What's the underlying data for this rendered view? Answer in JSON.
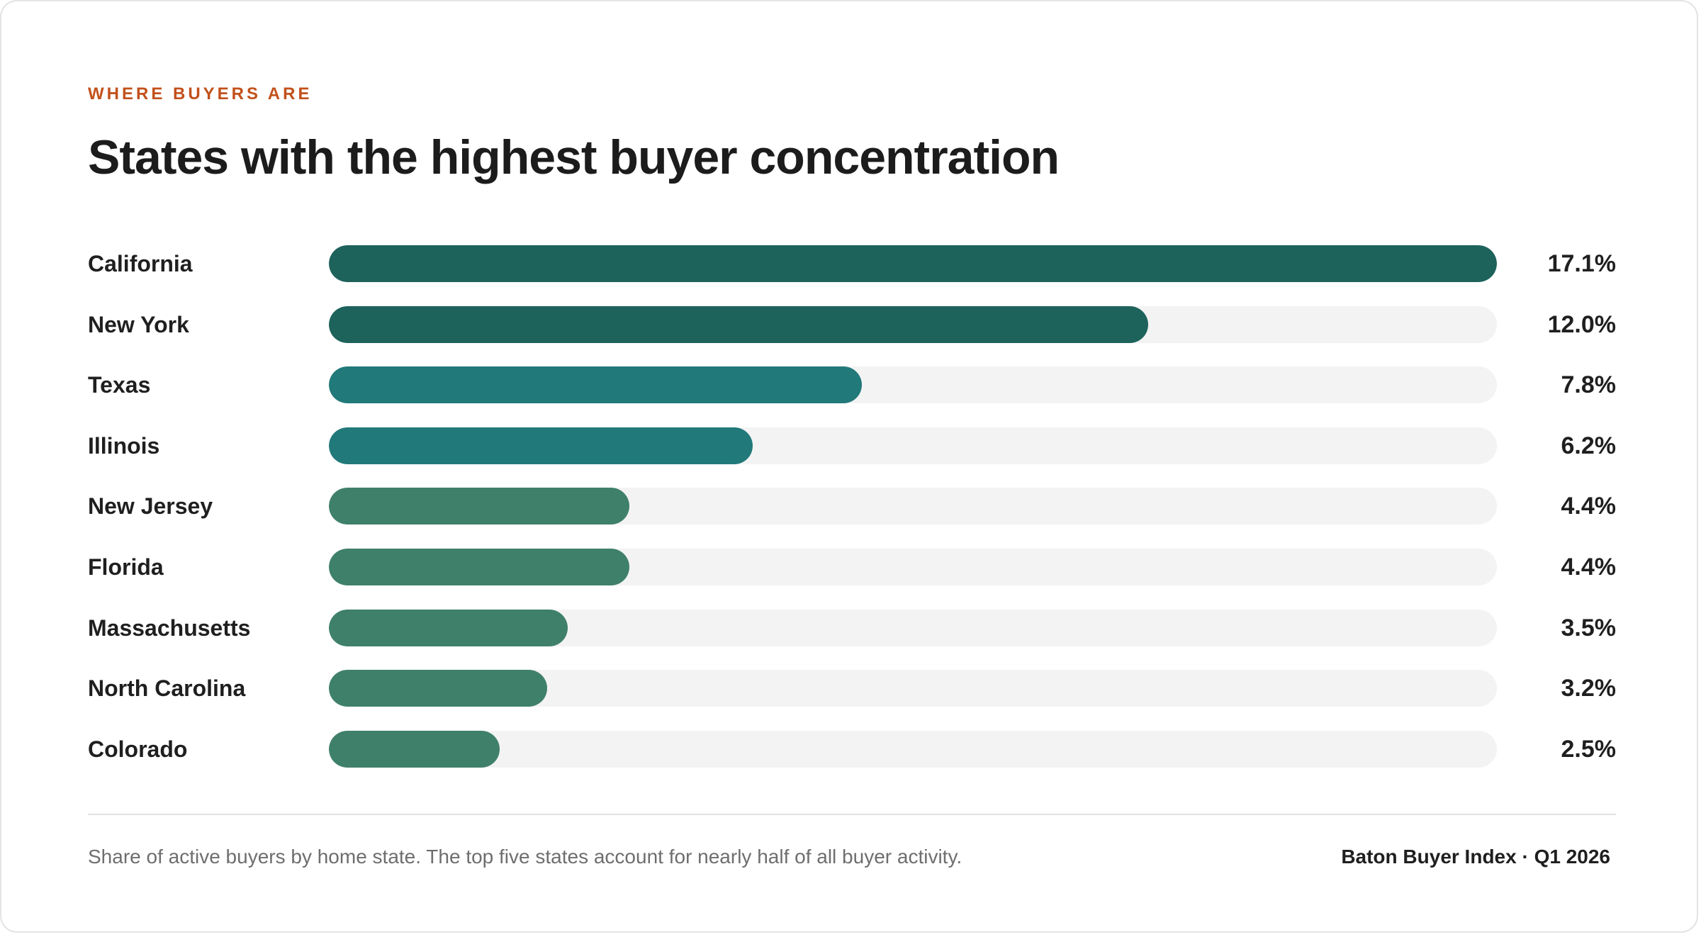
{
  "header": {
    "eyebrow": "WHERE BUYERS ARE",
    "title": "States with the highest buyer concentration"
  },
  "chart_data": {
    "type": "bar",
    "orientation": "horizontal",
    "title": "States with the highest buyer concentration",
    "xlabel": "",
    "ylabel": "",
    "xlim": [
      0,
      17.1
    ],
    "grid": false,
    "categories": [
      "California",
      "New York",
      "Texas",
      "Illinois",
      "New Jersey",
      "Florida",
      "Massachusetts",
      "North Carolina",
      "Colorado"
    ],
    "values": [
      17.1,
      12.0,
      7.8,
      6.2,
      4.4,
      4.4,
      3.5,
      3.2,
      2.5
    ],
    "value_labels": [
      "17.1%",
      "12.0%",
      "7.8%",
      "6.2%",
      "4.4%",
      "4.4%",
      "3.5%",
      "3.2%",
      "2.5%"
    ],
    "colors": [
      "#1e625c",
      "#1e625c",
      "#21797a",
      "#21797a",
      "#3f806a",
      "#3f806a",
      "#3f806a",
      "#3f806a",
      "#3f806a"
    ],
    "track_color": "#f3f3f3"
  },
  "footer": {
    "note": "Share of active buyers by home state. The top five states account for nearly half of all buyer activity.",
    "source": "Baton Buyer Index · Q1 2026"
  }
}
